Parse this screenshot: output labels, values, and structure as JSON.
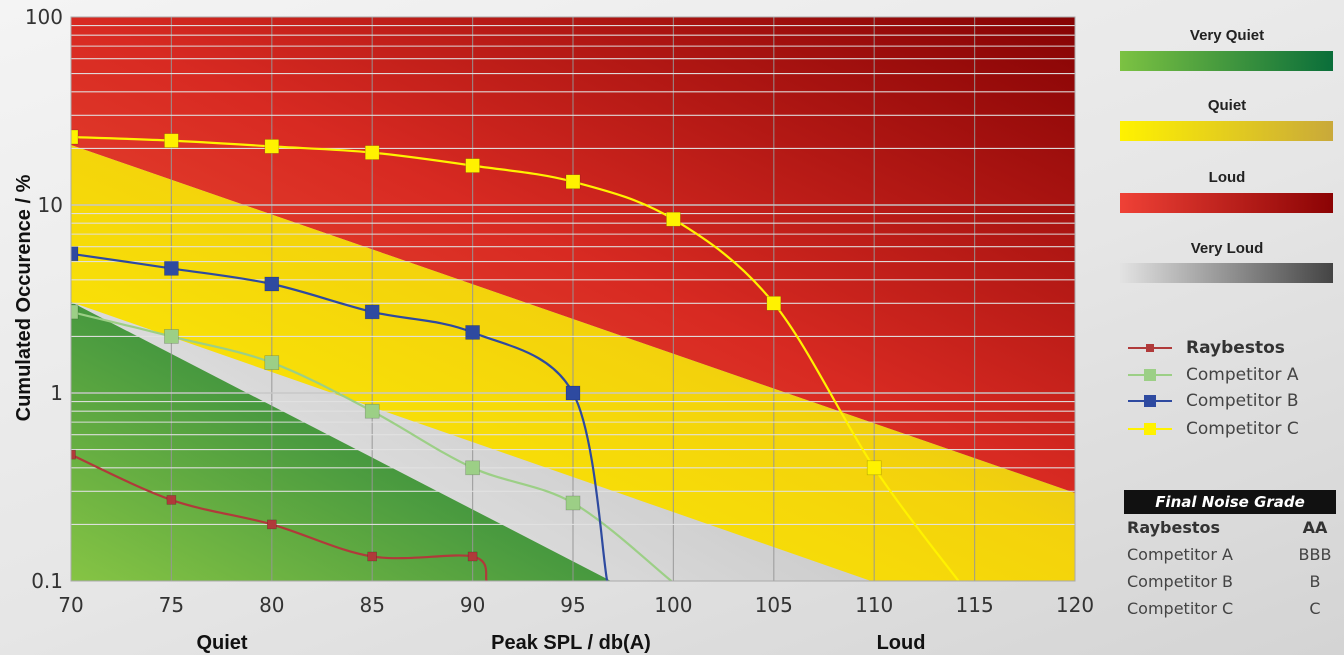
{
  "chart_data": {
    "type": "line",
    "xlabel": "Peak SPL / db(A)",
    "ylabel": "Cumulated Occurence / %",
    "x_left_label": "Quiet",
    "x_right_label": "Loud",
    "x_ticks": [
      "70",
      "75",
      "80",
      "85",
      "90",
      "95",
      "100",
      "105",
      "110",
      "115",
      "120"
    ],
    "y_ticks": [
      "0.1",
      "1",
      "10",
      "100"
    ],
    "xlim": [
      70,
      120
    ],
    "ylim": [
      0.1,
      100
    ],
    "y_scale": "log",
    "grid": true,
    "bands": [
      {
        "name": "Very Quiet",
        "colors": [
          "#7cc242",
          "#0a6e3a"
        ]
      },
      {
        "name": "Quiet",
        "colors": [
          "#fff200",
          "#c9a93a"
        ]
      },
      {
        "name": "Loud",
        "colors": [
          "#ef4136",
          "#8b0304"
        ]
      },
      {
        "name": "Very Loud",
        "colors": [
          "#e3e3e3",
          "#444444"
        ]
      }
    ],
    "series": [
      {
        "name": "Raybestos",
        "color": "#b03a3a",
        "marker": "small",
        "x": [
          70,
          75,
          80,
          85,
          90,
          90.7
        ],
        "y": [
          0.47,
          0.27,
          0.2,
          0.135,
          0.135,
          0.1
        ]
      },
      {
        "name": "Competitor A",
        "color": "#9ccf86",
        "marker": "large",
        "x": [
          70,
          75,
          80,
          85,
          90,
          95,
          99.9
        ],
        "y": [
          2.7,
          2.0,
          1.45,
          0.8,
          0.4,
          0.26,
          0.1
        ]
      },
      {
        "name": "Competitor B",
        "color": "#2e4aa0",
        "marker": "large",
        "x": [
          70,
          75,
          80,
          85,
          90,
          95,
          96.7
        ],
        "y": [
          5.5,
          4.6,
          3.8,
          2.7,
          2.1,
          1.0,
          0.1
        ]
      },
      {
        "name": "Competitor C",
        "color": "#fff200",
        "marker": "large",
        "x": [
          70,
          75,
          80,
          85,
          90,
          95,
          100,
          105,
          110,
          114.2
        ],
        "y": [
          23,
          22,
          20.5,
          19,
          16.2,
          13.3,
          8.4,
          3.0,
          0.4,
          0.1
        ]
      }
    ]
  },
  "legend_items": [
    "Raybestos",
    "Competitor A",
    "Competitor B",
    "Competitor C"
  ],
  "grade_table": {
    "title": "Final Noise Grade",
    "rows": [
      {
        "name": "Raybestos",
        "grade": "AA"
      },
      {
        "name": "Competitor A",
        "grade": "BBB"
      },
      {
        "name": "Competitor B",
        "grade": "B"
      },
      {
        "name": "Competitor C",
        "grade": "C"
      }
    ]
  }
}
